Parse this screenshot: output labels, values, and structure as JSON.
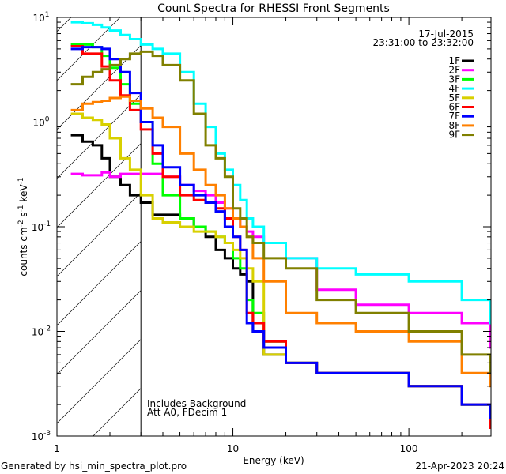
{
  "chart_data": {
    "type": "line",
    "title": "Count Spectra for RHESSI Front Segments",
    "xlabel": "Energy (keV)",
    "ylabel": "counts cm^-2 s^-1 keV^-1",
    "ylabel_parts": {
      "a": "counts cm",
      "b": "-2",
      "c": " s",
      "d": "-1",
      "e": " keV",
      "f": "-1"
    },
    "xscale": "log",
    "yscale": "log",
    "xlim": [
      1,
      293
    ],
    "ylim": [
      0.001,
      10
    ],
    "xticks": [
      {
        "v": 1,
        "label": "1"
      },
      {
        "v": 10,
        "label": "10"
      },
      {
        "v": 100,
        "label": "100"
      }
    ],
    "yticks": [
      {
        "v": 10,
        "base": "10",
        "exp": "1"
      },
      {
        "v": 1,
        "base": "10",
        "exp": "0"
      },
      {
        "v": 0.1,
        "base": "10",
        "exp": "-1"
      },
      {
        "v": 0.01,
        "base": "10",
        "exp": "-2"
      },
      {
        "v": 0.001,
        "base": "10",
        "exp": "-3"
      }
    ],
    "shaded_region_below_keV": 3,
    "legend_position": "top-right",
    "legend_header": [
      "17-Jul-2015",
      "23:31:00 to 23:32:00"
    ],
    "annotations": [
      "Includes Background",
      "Att A0, FDecim 1"
    ],
    "energy": [
      1.2,
      1.4,
      1.6,
      1.8,
      2.0,
      2.3,
      2.6,
      3.0,
      3.5,
      4,
      5,
      6,
      7,
      8,
      9,
      10,
      11,
      12,
      13,
      15,
      20,
      30,
      50,
      100,
      200,
      290
    ],
    "series": [
      {
        "name": "1F",
        "color": "#000000",
        "values": [
          0.75,
          0.65,
          0.6,
          0.45,
          0.3,
          0.25,
          0.2,
          0.17,
          0.13,
          0.13,
          0.12,
          0.1,
          0.08,
          0.06,
          0.05,
          0.04,
          0.035,
          0.03,
          0.01,
          0.006,
          0.005,
          0.004,
          0.004,
          0.003,
          0.002,
          0.0015
        ]
      },
      {
        "name": "2F",
        "color": "#ff00ff",
        "values": [
          0.32,
          0.31,
          0.31,
          0.33,
          0.3,
          0.32,
          0.32,
          0.32,
          0.32,
          0.3,
          0.25,
          0.22,
          0.2,
          0.17,
          0.15,
          0.12,
          0.1,
          0.09,
          0.08,
          0.07,
          0.05,
          0.025,
          0.018,
          0.015,
          0.012,
          0.007
        ]
      },
      {
        "name": "3F",
        "color": "#00ff00",
        "values": [
          5.5,
          5.5,
          5.2,
          4.3,
          3.3,
          2.3,
          1.5,
          1.0,
          0.4,
          0.2,
          0.12,
          0.1,
          0.09,
          0.08,
          0.07,
          0.05,
          0.04,
          0.02,
          0.015,
          0.008,
          0.005,
          0.004,
          0.004,
          0.003,
          0.002,
          0.0012
        ]
      },
      {
        "name": "4F",
        "color": "#00ffff",
        "values": [
          9,
          8.8,
          8.5,
          8,
          7.5,
          6.8,
          6.2,
          5.5,
          5,
          4.5,
          3,
          1.5,
          0.9,
          0.5,
          0.35,
          0.25,
          0.18,
          0.12,
          0.1,
          0.07,
          0.05,
          0.04,
          0.035,
          0.03,
          0.02,
          0.012
        ]
      },
      {
        "name": "5F",
        "color": "#d8d000",
        "values": [
          1.2,
          1.1,
          1.05,
          0.95,
          0.7,
          0.45,
          0.35,
          0.2,
          0.12,
          0.11,
          0.1,
          0.09,
          0.09,
          0.08,
          0.07,
          0.06,
          0.05,
          0.04,
          0.03,
          0.006,
          0.005,
          0.004,
          0.004,
          0.003,
          0.002,
          0.0015
        ]
      },
      {
        "name": "6F",
        "color": "#ff0000",
        "values": [
          5.3,
          4.5,
          4.5,
          3.4,
          2.5,
          1.8,
          1.3,
          0.85,
          0.5,
          0.3,
          0.2,
          0.18,
          0.17,
          0.15,
          0.12,
          0.08,
          0.06,
          0.015,
          0.012,
          0.008,
          0.005,
          0.004,
          0.004,
          0.003,
          0.002,
          0.0012
        ]
      },
      {
        "name": "7F",
        "color": "#0000ff",
        "values": [
          5,
          5.2,
          5.2,
          5,
          4,
          3,
          1.9,
          1.0,
          0.6,
          0.37,
          0.25,
          0.2,
          0.17,
          0.14,
          0.1,
          0.08,
          0.06,
          0.012,
          0.01,
          0.007,
          0.005,
          0.004,
          0.004,
          0.003,
          0.002,
          0.0015
        ]
      },
      {
        "name": "8F",
        "color": "#ff8000",
        "values": [
          1.3,
          1.5,
          1.55,
          1.6,
          1.7,
          1.75,
          1.6,
          1.35,
          1.1,
          0.9,
          0.5,
          0.35,
          0.25,
          0.2,
          0.15,
          0.12,
          0.1,
          0.08,
          0.05,
          0.03,
          0.015,
          0.012,
          0.01,
          0.008,
          0.004,
          0.003
        ]
      },
      {
        "name": "9F",
        "color": "#808000",
        "values": [
          2.3,
          2.7,
          3,
          3.2,
          3.5,
          4,
          4.5,
          4.7,
          4.3,
          3.5,
          2.5,
          1.2,
          0.6,
          0.45,
          0.3,
          0.15,
          0.12,
          0.08,
          0.07,
          0.05,
          0.04,
          0.02,
          0.015,
          0.01,
          0.006,
          0.004
        ]
      }
    ]
  },
  "footer": {
    "generated_by": "Generated by hsi_min_spectra_plot.pro",
    "timestamp": "21-Apr-2023 20:24"
  }
}
